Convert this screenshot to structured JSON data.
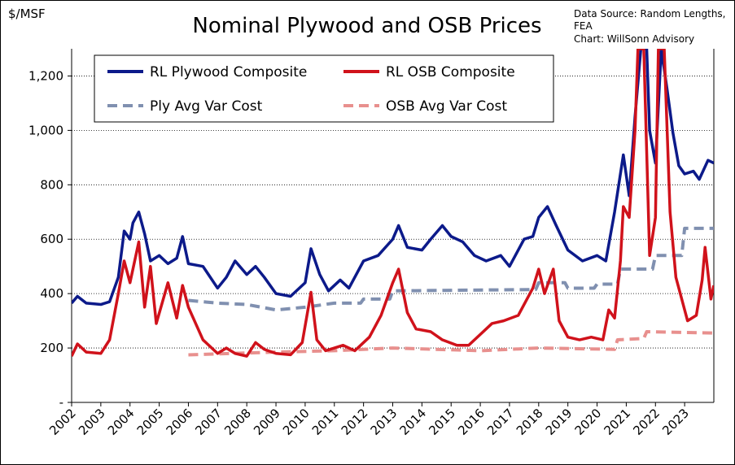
{
  "chart_data": {
    "type": "line",
    "title": "Nominal Plywood and OSB Prices",
    "y_label": "$/MSF",
    "annotations": [
      "Data Source: Random Lengths,",
      "FEA",
      "Chart:  WillSonn Advisory"
    ],
    "xlim": [
      2002,
      2024
    ],
    "xticks": [
      2002,
      2003,
      2004,
      2005,
      2006,
      2007,
      2008,
      2009,
      2010,
      2011,
      2012,
      2013,
      2014,
      2015,
      2016,
      2017,
      2018,
      2019,
      2020,
      2021,
      2022,
      2023
    ],
    "ylim": [
      0,
      1300
    ],
    "yticks": [
      {
        "value": 0,
        "label": "-"
      },
      200,
      400,
      600,
      800,
      {
        "value": 1000,
        "label": "1,000"
      },
      {
        "value": 1200,
        "label": "1,200"
      }
    ],
    "grid": true,
    "series": [
      {
        "name": "RL Plywood Composite",
        "color": "#0c1a8a",
        "dash": false,
        "x": [
          2002.0,
          2002.2,
          2002.5,
          2003.0,
          2003.3,
          2003.6,
          2003.8,
          2004.0,
          2004.1,
          2004.3,
          2004.5,
          2004.7,
          2005.0,
          2005.3,
          2005.6,
          2005.8,
          2006.0,
          2006.5,
          2007.0,
          2007.3,
          2007.6,
          2008.0,
          2008.3,
          2008.6,
          2009.0,
          2009.5,
          2010.0,
          2010.2,
          2010.5,
          2010.8,
          2011.2,
          2011.5,
          2012.0,
          2012.5,
          2013.0,
          2013.2,
          2013.5,
          2014.0,
          2014.3,
          2014.7,
          2015.0,
          2015.4,
          2015.8,
          2016.2,
          2016.7,
          2017.0,
          2017.5,
          2017.8,
          2018.0,
          2018.3,
          2018.6,
          2019.0,
          2019.5,
          2020.0,
          2020.3,
          2020.6,
          2020.9,
          2021.1,
          2021.3,
          2021.5,
          2021.7,
          2021.8,
          2022.0,
          2022.2,
          2022.4,
          2022.6,
          2022.8,
          2023.0,
          2023.3,
          2023.5,
          2023.8,
          2024.0
        ],
        "values": [
          365,
          390,
          365,
          360,
          370,
          460,
          630,
          600,
          660,
          700,
          620,
          520,
          540,
          510,
          530,
          610,
          510,
          500,
          420,
          460,
          520,
          470,
          500,
          460,
          400,
          390,
          440,
          565,
          470,
          410,
          450,
          420,
          520,
          540,
          600,
          650,
          570,
          560,
          600,
          650,
          610,
          590,
          540,
          520,
          540,
          500,
          600,
          610,
          680,
          720,
          650,
          560,
          520,
          540,
          520,
          700,
          910,
          760,
          1050,
          1300,
          1300,
          1000,
          880,
          1300,
          1150,
          990,
          870,
          840,
          850,
          820,
          890,
          880
        ]
      },
      {
        "name": "RL OSB Composite",
        "color": "#d0121b",
        "dash": false,
        "x": [
          2002.0,
          2002.2,
          2002.5,
          2003.0,
          2003.3,
          2003.6,
          2003.8,
          2004.0,
          2004.3,
          2004.5,
          2004.7,
          2004.9,
          2005.3,
          2005.6,
          2005.8,
          2006.0,
          2006.5,
          2007.0,
          2007.3,
          2007.6,
          2008.0,
          2008.3,
          2008.6,
          2009.0,
          2009.5,
          2009.9,
          2010.2,
          2010.4,
          2010.7,
          2011.3,
          2011.7,
          2012.2,
          2012.6,
          2013.0,
          2013.2,
          2013.5,
          2013.8,
          2014.3,
          2014.7,
          2015.2,
          2015.6,
          2016.0,
          2016.4,
          2016.8,
          2017.3,
          2017.8,
          2018.0,
          2018.2,
          2018.5,
          2018.7,
          2019.0,
          2019.4,
          2019.8,
          2020.2,
          2020.4,
          2020.6,
          2020.8,
          2020.9,
          2021.1,
          2021.3,
          2021.4,
          2021.6,
          2021.8,
          2022.0,
          2022.1,
          2022.3,
          2022.5,
          2022.7,
          2022.9,
          2023.1,
          2023.4,
          2023.6,
          2023.7,
          2023.9,
          2024.0
        ],
        "values": [
          170,
          215,
          185,
          180,
          230,
          400,
          520,
          440,
          590,
          350,
          500,
          290,
          440,
          310,
          430,
          350,
          230,
          180,
          200,
          180,
          170,
          220,
          195,
          180,
          175,
          220,
          405,
          230,
          190,
          210,
          190,
          240,
          320,
          440,
          490,
          330,
          270,
          260,
          230,
          210,
          210,
          250,
          290,
          300,
          320,
          420,
          490,
          400,
          490,
          300,
          240,
          230,
          240,
          230,
          340,
          310,
          520,
          720,
          680,
          1000,
          1300,
          1300,
          540,
          680,
          1300,
          1300,
          700,
          460,
          380,
          300,
          320,
          450,
          570,
          380,
          430
        ]
      },
      {
        "name": "Ply Avg Var Cost",
        "color": "#8090b0",
        "dash": true,
        "x": [
          2006.0,
          2007.0,
          2008.0,
          2009.0,
          2010.0,
          2011.0,
          2011.9,
          2012.0,
          2012.9,
          2013.0,
          2017.9,
          2018.0,
          2018.9,
          2019.0,
          2019.9,
          2020.0,
          2020.7,
          2020.8,
          2021.9,
          2022.0,
          2022.9,
          2023.0,
          2024.0
        ],
        "values": [
          375,
          365,
          360,
          340,
          350,
          365,
          365,
          380,
          380,
          410,
          415,
          440,
          440,
          420,
          420,
          435,
          435,
          490,
          490,
          540,
          540,
          640,
          640
        ]
      },
      {
        "name": "OSB Avg Var Cost",
        "color": "#e8908e",
        "dash": true,
        "x": [
          2006.0,
          2009.0,
          2011.0,
          2013.0,
          2016.0,
          2018.0,
          2020.6,
          2020.7,
          2021.6,
          2021.7,
          2024.0
        ],
        "values": [
          175,
          185,
          190,
          200,
          190,
          200,
          195,
          230,
          235,
          260,
          255
        ]
      }
    ]
  }
}
